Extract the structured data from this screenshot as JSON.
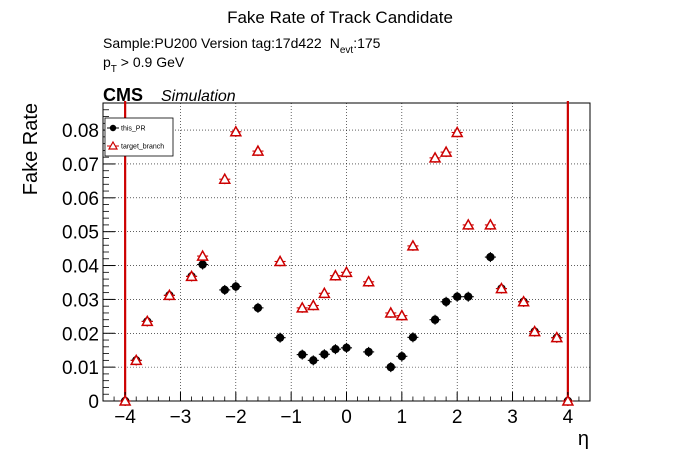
{
  "chart_data": {
    "type": "scatter",
    "title": "Fake Rate of Track Candidate",
    "info_sample": "Sample:PU200   Version tag:17d422",
    "info_nevt_label": "N",
    "info_nevt_sub": "evt",
    "info_nevt_value": ":175",
    "info_pt_p": "p",
    "info_pt_sub": "T",
    "info_pt_rest": " > 0.9 GeV",
    "cms_label": "CMS",
    "simulation_label": "Simulation",
    "xlabel": "η",
    "ylabel": "Fake Rate",
    "xlim": [
      -4.4,
      4.4
    ],
    "ylim": [
      0,
      0.088
    ],
    "x_ticks": [
      -4,
      -3,
      -2,
      -1,
      0,
      1,
      2,
      3,
      4
    ],
    "x_tick_labels": [
      "−4",
      "−3",
      "−2",
      "−1",
      "0",
      "1",
      "2",
      "3",
      "4"
    ],
    "y_ticks": [
      0,
      0.01,
      0.02,
      0.03,
      0.04,
      0.05,
      0.06,
      0.07,
      0.08
    ],
    "y_tick_labels": [
      "0",
      "0.01",
      "0.02",
      "0.03",
      "0.04",
      "0.05",
      "0.06",
      "0.07",
      "0.08"
    ],
    "grid": true,
    "legend_position": "top-left",
    "vertical_lines": [
      -4.0,
      4.0
    ],
    "vertical_line_color": "#cc0000",
    "bin_half_width": 0.1,
    "series": [
      {
        "name": "this_PR",
        "color": "#000000",
        "marker": "filled-circle",
        "x": [
          -4.0,
          -3.8,
          -3.6,
          -3.2,
          -2.8,
          -2.6,
          -2.2,
          -2.0,
          -1.6,
          -1.2,
          -0.8,
          -0.6,
          -0.4,
          -0.2,
          0.0,
          0.4,
          0.8,
          1.0,
          1.2,
          1.6,
          1.8,
          2.0,
          2.2,
          2.6,
          2.8,
          3.2,
          3.4,
          3.8,
          4.0
        ],
        "y": [
          0.0,
          0.012,
          0.0235,
          0.0312,
          0.0368,
          0.0403,
          0.0328,
          0.0338,
          0.0275,
          0.0187,
          0.0137,
          0.012,
          0.0138,
          0.0153,
          0.0157,
          0.0145,
          0.01,
          0.0132,
          0.0188,
          0.024,
          0.0293,
          0.0308,
          0.0308,
          0.0425,
          0.0332,
          0.0293,
          0.0205,
          0.0187,
          0.0
        ]
      },
      {
        "name": "target_branch",
        "color": "#cc0000",
        "marker": "open-triangle",
        "x": [
          -4.0,
          -3.8,
          -3.6,
          -3.2,
          -2.8,
          -2.6,
          -2.2,
          -2.0,
          -1.6,
          -1.2,
          -0.8,
          -0.6,
          -0.4,
          -0.2,
          0.0,
          0.4,
          0.8,
          1.0,
          1.2,
          1.6,
          1.8,
          2.0,
          2.2,
          2.6,
          2.8,
          3.2,
          3.4,
          3.8,
          4.0
        ],
        "y": [
          0.0,
          0.012,
          0.0235,
          0.0312,
          0.0368,
          0.0428,
          0.0655,
          0.0795,
          0.0738,
          0.0412,
          0.0275,
          0.0282,
          0.0318,
          0.037,
          0.038,
          0.0352,
          0.026,
          0.0252,
          0.0458,
          0.0718,
          0.0735,
          0.0793,
          0.052,
          0.052,
          0.0332,
          0.0293,
          0.0205,
          0.0187,
          0.0
        ]
      }
    ]
  }
}
